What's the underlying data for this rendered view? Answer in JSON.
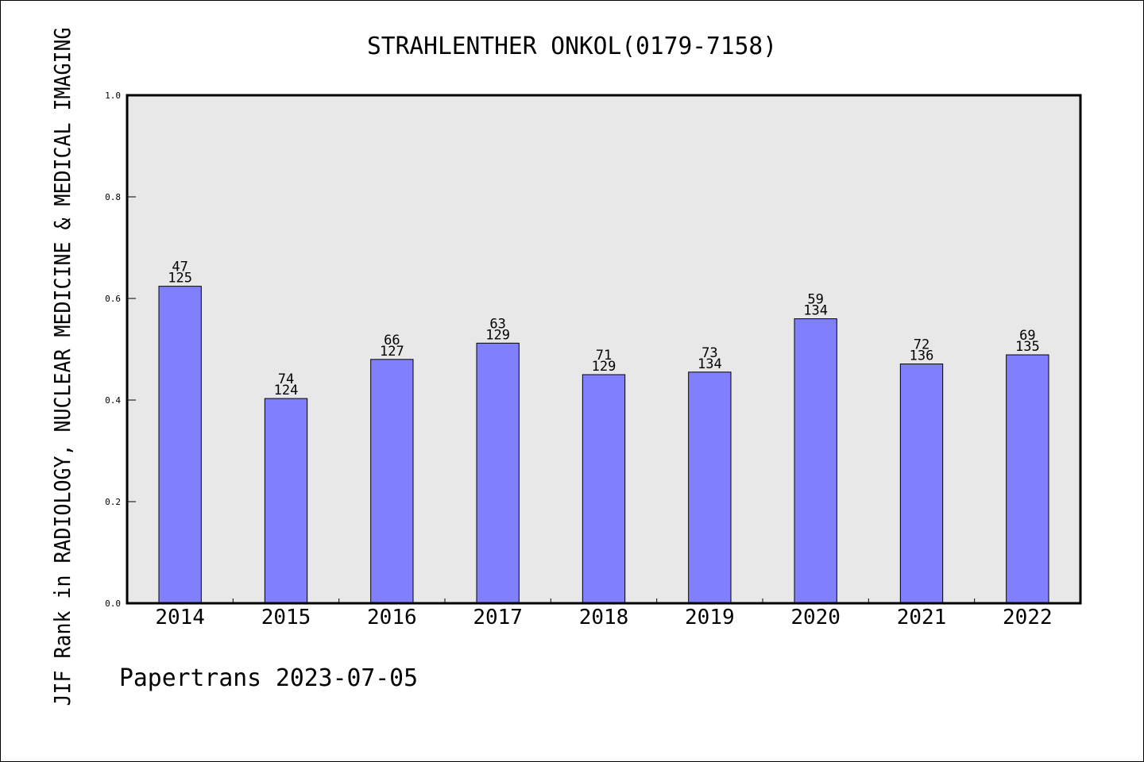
{
  "chart_data": {
    "type": "bar",
    "title": "STRAHLENTHER ONKOL(0179-7158)",
    "xlabel": "",
    "ylabel": "JIF Rank in RADIOLOGY, NUCLEAR MEDICINE & MEDICAL IMAGING",
    "categories": [
      "2014",
      "2015",
      "2016",
      "2017",
      "2018",
      "2019",
      "2020",
      "2021",
      "2022"
    ],
    "values": [
      0.624,
      0.403,
      0.48,
      0.512,
      0.45,
      0.455,
      0.56,
      0.471,
      0.489
    ],
    "rank_labels": [
      "47",
      "74",
      "66",
      "63",
      "71",
      "73",
      "59",
      "72",
      "69"
    ],
    "total_labels": [
      "125",
      "124",
      "127",
      "129",
      "129",
      "134",
      "134",
      "136",
      "135"
    ],
    "ylim": [
      0,
      1.0
    ],
    "yticks": [
      "0.0",
      "0.2",
      "0.4",
      "0.6",
      "0.8",
      "1.0"
    ],
    "grid": false,
    "colors": {
      "bar": "#8080ff",
      "bar_edge": "#000000",
      "plot_background": "#e8e8e8"
    }
  },
  "footer": "Papertrans 2023-07-05"
}
